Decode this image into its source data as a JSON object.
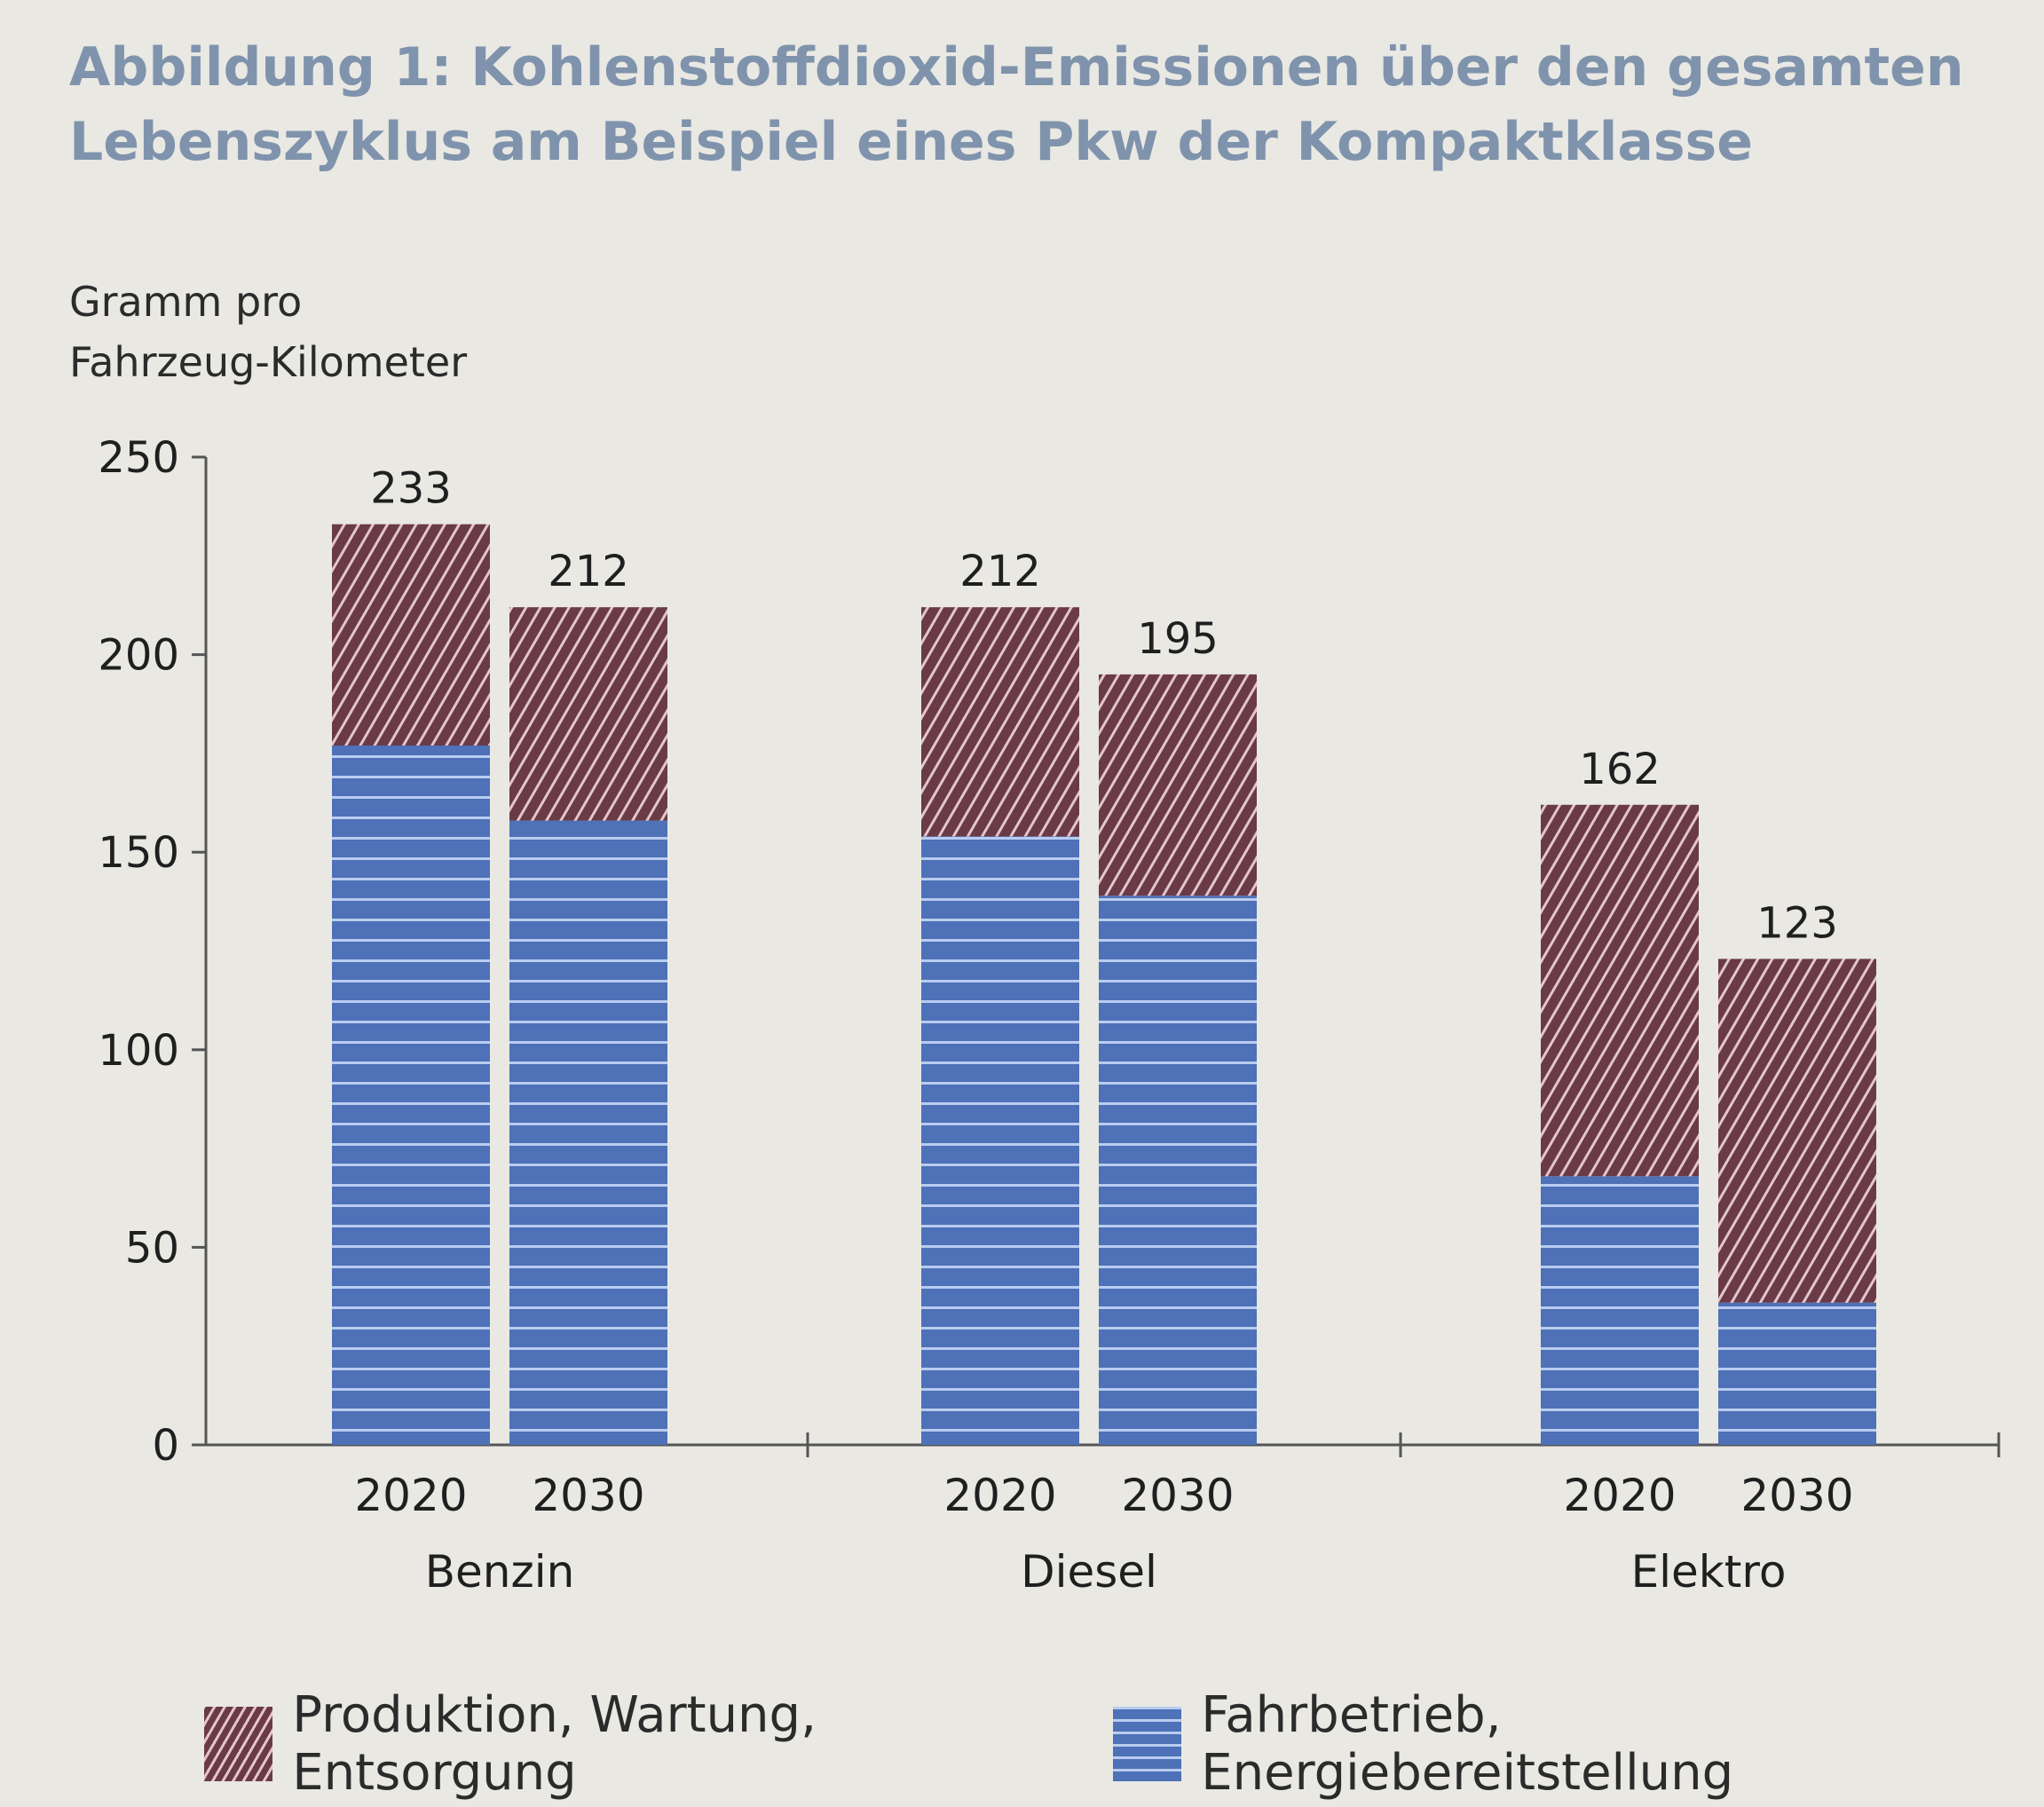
{
  "chart_data": {
    "type": "bar",
    "stacked": true,
    "title": [
      "Abbildung 1: Kohlenstoffdioxid-Emissionen über den gesamten",
      "Lebenszyklus am Beispiel eines Pkw der Kompaktklasse"
    ],
    "ylabel": [
      "Gramm pro",
      "Fahrzeug-Kilometer"
    ],
    "xlabel": "",
    "ylim": [
      0,
      250
    ],
    "yticks": [
      0,
      50,
      100,
      150,
      200,
      250
    ],
    "groups": [
      {
        "label": "Benzin",
        "categories": [
          "2020",
          "2030"
        ]
      },
      {
        "label": "Diesel",
        "categories": [
          "2020",
          "2030"
        ]
      },
      {
        "label": "Elektro",
        "categories": [
          "2020",
          "2030"
        ]
      }
    ],
    "series": [
      {
        "name": "Fahrbetrieb, Energiebereitstellung",
        "color": "#4e71b7",
        "pattern": "horizontal-stripes",
        "values": [
          177,
          158,
          154,
          139,
          68,
          36
        ]
      },
      {
        "name": "Produktion, Wartung, Entsorgung",
        "color": "#6a3a46",
        "pattern": "diagonal-hatch",
        "values": [
          56,
          54,
          58,
          56,
          94,
          87
        ]
      }
    ],
    "totals": [
      233,
      212,
      212,
      195,
      162,
      123
    ],
    "legend": [
      "Produktion, Wartung, Entsorgung",
      "Fahrbetrieb, Energiebereitstellung"
    ],
    "legend_position": "bottom",
    "grid": false
  }
}
